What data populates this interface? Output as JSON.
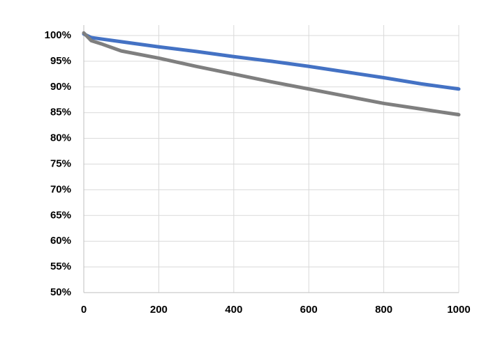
{
  "chart_data": {
    "type": "line",
    "x": [
      0,
      20,
      50,
      100,
      200,
      300,
      400,
      500,
      600,
      700,
      800,
      900,
      1000
    ],
    "series": [
      {
        "color": "#4472c4",
        "values": [
          100.3,
          99.6,
          99.3,
          98.8,
          97.8,
          96.9,
          95.9,
          95.0,
          94.0,
          92.9,
          91.8,
          90.6,
          89.6
        ]
      },
      {
        "color": "#7f7f7f",
        "values": [
          100.5,
          99.0,
          98.3,
          97.0,
          95.6,
          94.0,
          92.5,
          91.0,
          89.6,
          88.2,
          86.8,
          85.7,
          84.6
        ]
      }
    ],
    "xlim": [
      0,
      1000
    ],
    "xticks": [
      0,
      200,
      400,
      600,
      800,
      1000
    ],
    "ylim": [
      50,
      100
    ],
    "yticks": [
      {
        "value": 50,
        "label": "50%"
      },
      {
        "value": 55,
        "label": "55%"
      },
      {
        "value": 60,
        "label": "60%"
      },
      {
        "value": 65,
        "label": "65%"
      },
      {
        "value": 70,
        "label": "70%"
      },
      {
        "value": 75,
        "label": "75%"
      },
      {
        "value": 80,
        "label": "80%"
      },
      {
        "value": 85,
        "label": "85%"
      },
      {
        "value": 90,
        "label": "90%"
      },
      {
        "value": 95,
        "label": "95%"
      },
      {
        "value": 100,
        "label": "100%"
      }
    ],
    "grid": true
  }
}
